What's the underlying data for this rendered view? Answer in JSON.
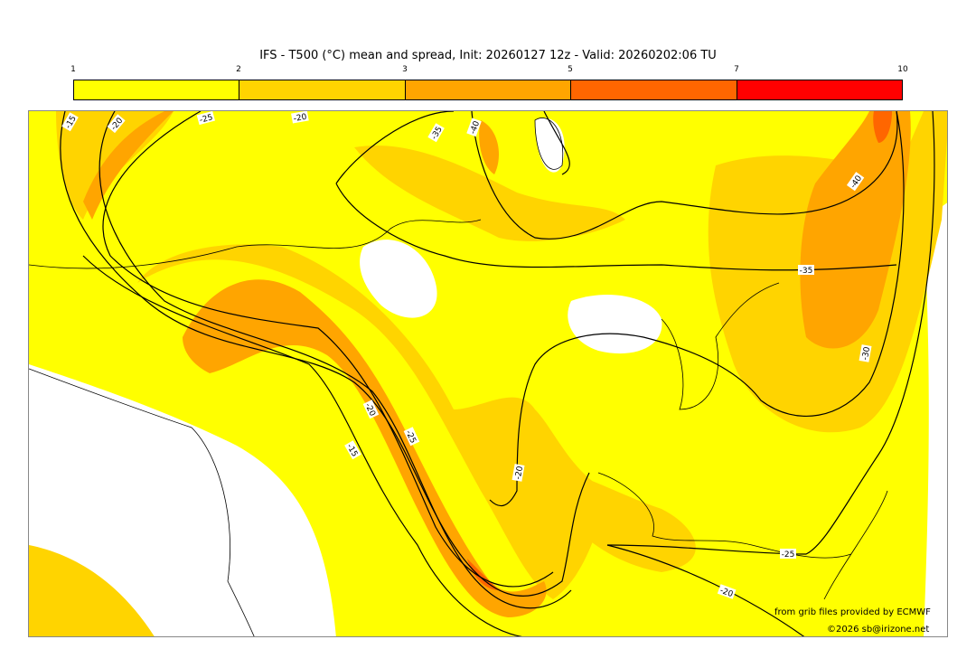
{
  "title": "IFS - T500 (°C) mean and spread, Init: 20260127 12z - Valid: 20260202:06 TU",
  "colorbar": {
    "ticks": [
      "1",
      "2",
      "3",
      "5",
      "7",
      "10"
    ],
    "colors": [
      "#ffff00",
      "#ffd400",
      "#ffa500",
      "#ff6600",
      "#ff0000"
    ]
  },
  "contour_labels": [
    "-15",
    "-20",
    "-25",
    "-20",
    "-35",
    "-40",
    "-40",
    "-35",
    "-30",
    "-20",
    "-25",
    "-20",
    "-15",
    "-25",
    "-20"
  ],
  "credits": {
    "source": "from grib files provided by ECMWF",
    "copyright": "©2026 sb@irizone.net"
  }
}
